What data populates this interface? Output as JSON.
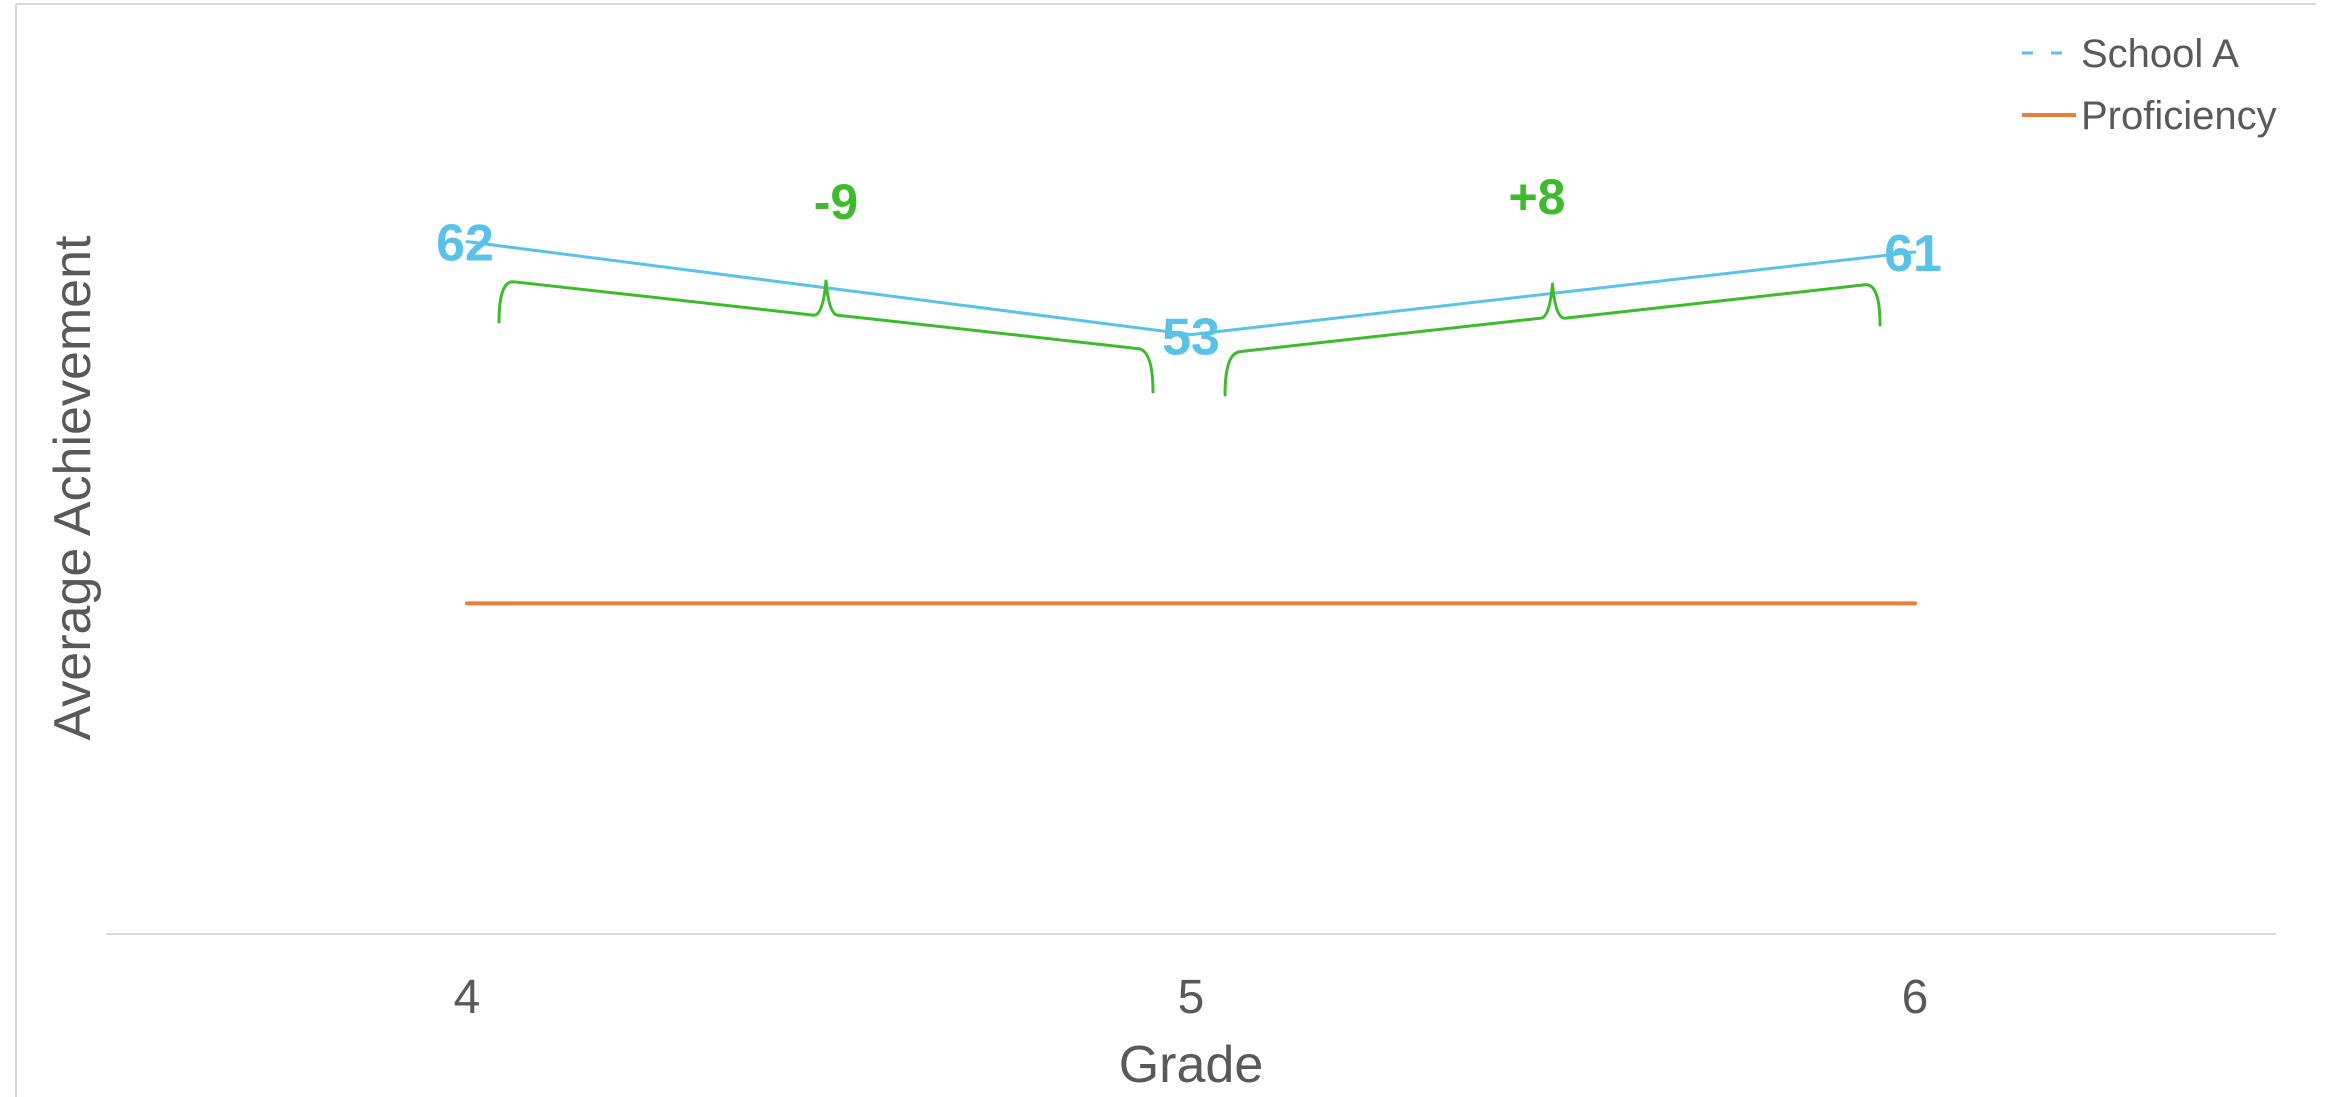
{
  "chart_data": {
    "type": "line",
    "title": "",
    "xlabel": "Grade",
    "ylabel": "Average Achievement",
    "categories": [
      "4",
      "5",
      "6"
    ],
    "series": [
      {
        "name": "School A",
        "values": [
          62,
          53,
          61
        ],
        "color": "#5bc2e7",
        "line_style": "solid",
        "legend_style": "dashed",
        "show_data_labels": true
      },
      {
        "name": "Proficiency",
        "values": [
          27,
          27,
          27
        ],
        "color": "#ed7d31",
        "line_style": "solid",
        "show_data_labels": false
      }
    ],
    "ylim": [
      -5,
      85
    ],
    "y_axis_visible": false,
    "grid": false,
    "legend": "top-right",
    "annotations": [
      {
        "from": "4",
        "to": "5",
        "text": "-9",
        "color": "#3dbb2c"
      },
      {
        "from": "5",
        "to": "6",
        "text": "+8",
        "color": "#3dbb2c"
      }
    ]
  }
}
